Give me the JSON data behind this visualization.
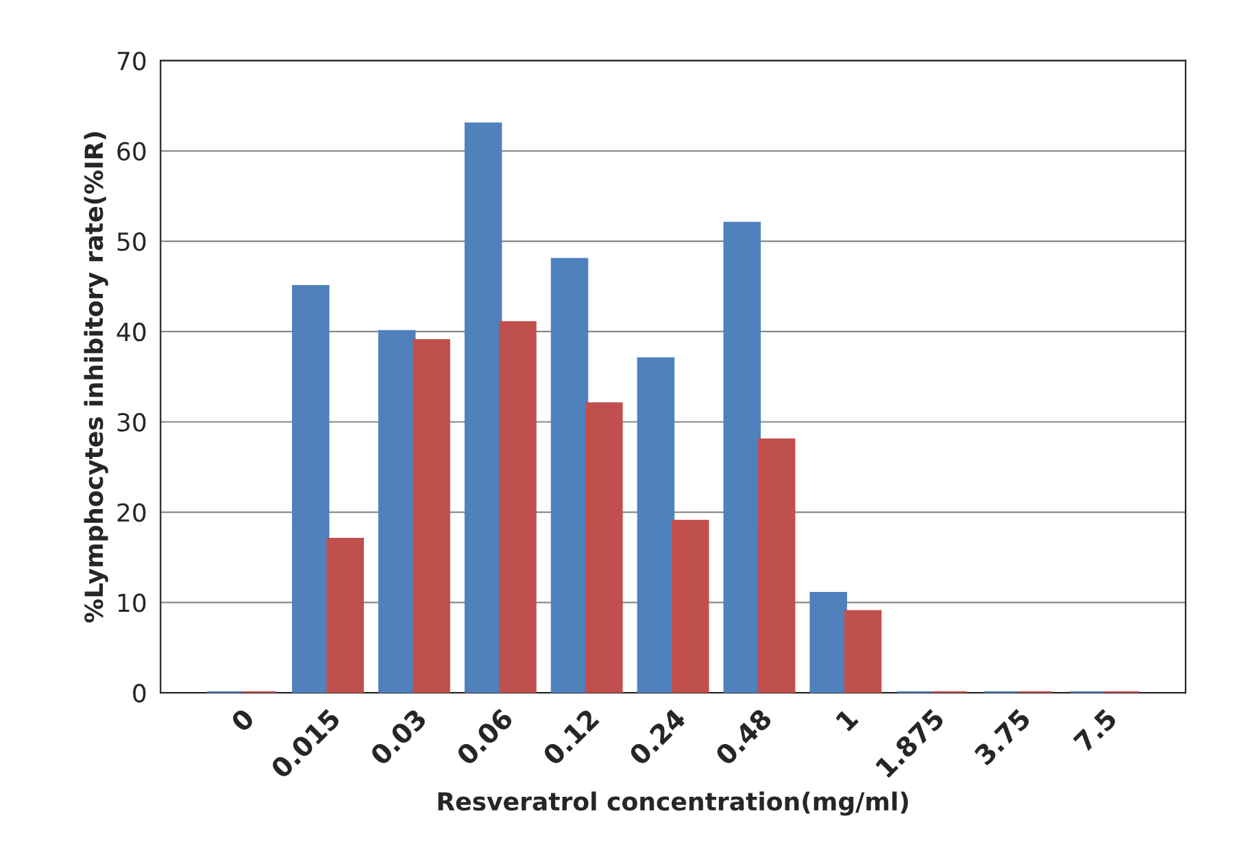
{
  "chart_data": {
    "type": "bar",
    "xlabel": "Resveratrol concentration(mg/ml)",
    "ylabel": "%Lymphocytes inhibitory rate(%IR)",
    "categories": [
      "0",
      "0.015",
      "0.03",
      "0.06",
      "0.12",
      "0.24",
      "0.48",
      "1",
      "1.875",
      "3.75",
      "7.5"
    ],
    "series": [
      {
        "color": "#4f81bd",
        "values": [
          0,
          45,
          40,
          63,
          48,
          37,
          52,
          11,
          0,
          0,
          0
        ]
      },
      {
        "color": "#c0504d",
        "values": [
          0,
          17,
          39,
          41,
          32,
          19,
          28,
          9,
          0,
          0,
          0
        ]
      }
    ],
    "ylim": [
      0,
      70
    ],
    "yticks": [
      0,
      10,
      20,
      30,
      40,
      50,
      60,
      70
    ],
    "grid": "y"
  }
}
